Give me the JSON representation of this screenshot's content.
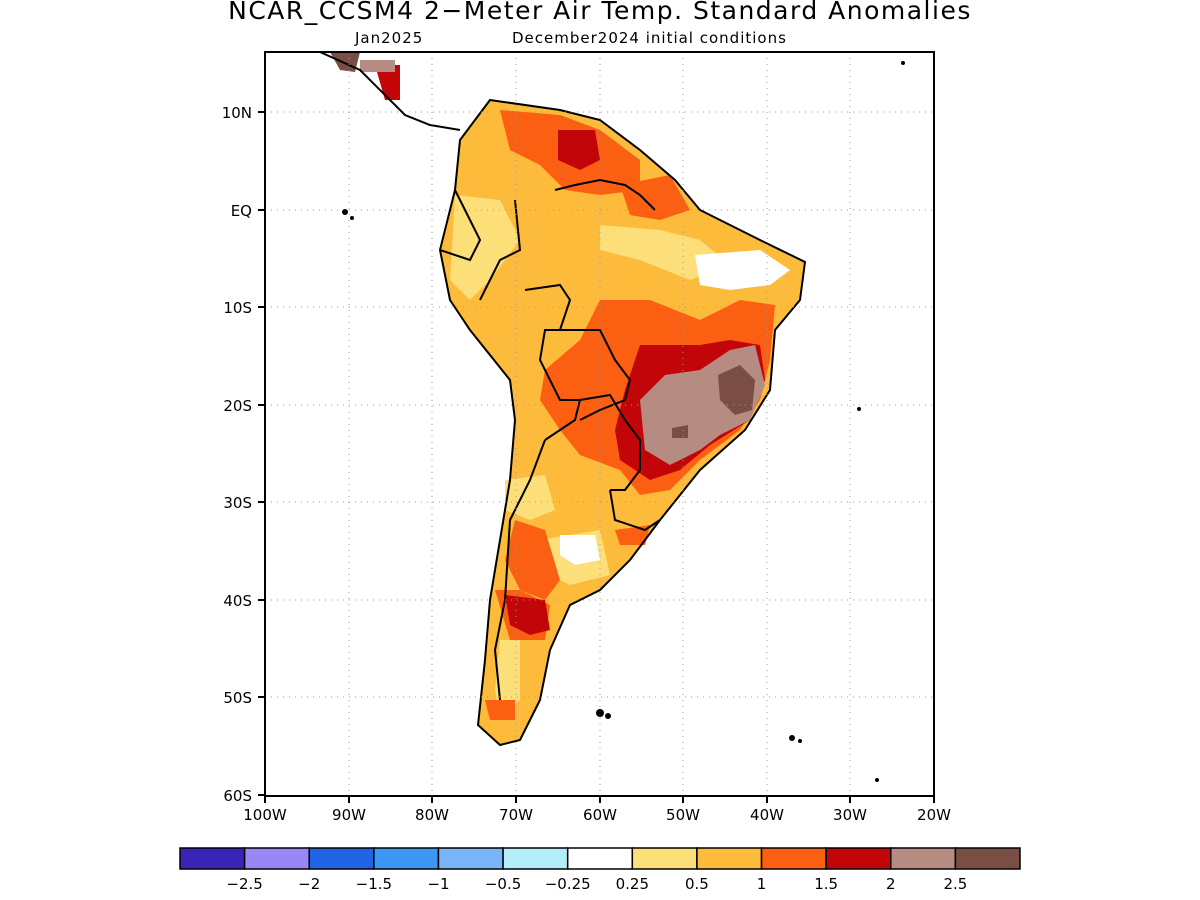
{
  "title": "NCAR_CCSM4 2−Meter Air Temp. Standard Anomalies",
  "subtitle_left": "Jan2025",
  "subtitle_right": "December2024 initial conditions",
  "map": {
    "region": "South America",
    "lat_labels": [
      "10N",
      "EQ",
      "10S",
      "20S",
      "30S",
      "40S",
      "50S",
      "60S"
    ],
    "lon_labels": [
      "100W",
      "90W",
      "80W",
      "70W",
      "60W",
      "50W",
      "40W",
      "30W",
      "20W"
    ],
    "grid": "dotted"
  },
  "colorbar": {
    "colors": [
      "#3a24b8",
      "#9b86f7",
      "#1f64e4",
      "#3c96f4",
      "#78b6f8",
      "#b2eefa",
      "#ffffff",
      "#fddf7a",
      "#fdbb3c",
      "#fb5f12",
      "#c20508",
      "#b58b82",
      "#7a4e45"
    ],
    "labels": [
      "−2.5",
      "−2",
      "−1.5",
      "−1",
      "−0.5",
      "−0.25",
      "0.25",
      "0.5",
      "1",
      "1.5",
      "2",
      "2.5"
    ]
  }
}
